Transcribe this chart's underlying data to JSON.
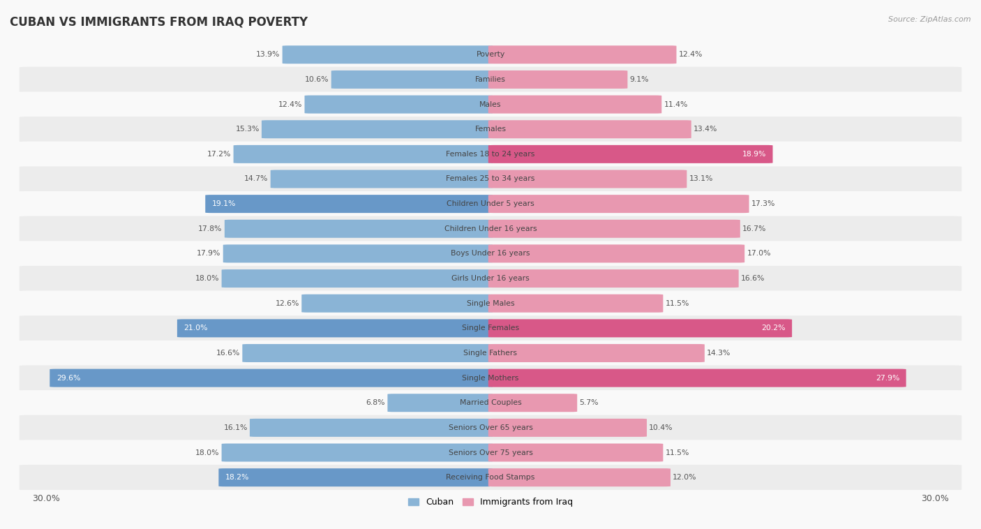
{
  "title": "CUBAN VS IMMIGRANTS FROM IRAQ POVERTY",
  "source": "Source: ZipAtlas.com",
  "categories": [
    "Poverty",
    "Families",
    "Males",
    "Females",
    "Females 18 to 24 years",
    "Females 25 to 34 years",
    "Children Under 5 years",
    "Children Under 16 years",
    "Boys Under 16 years",
    "Girls Under 16 years",
    "Single Males",
    "Single Females",
    "Single Fathers",
    "Single Mothers",
    "Married Couples",
    "Seniors Over 65 years",
    "Seniors Over 75 years",
    "Receiving Food Stamps"
  ],
  "cuban_values": [
    13.9,
    10.6,
    12.4,
    15.3,
    17.2,
    14.7,
    19.1,
    17.8,
    17.9,
    18.0,
    12.6,
    21.0,
    16.6,
    29.6,
    6.8,
    16.1,
    18.0,
    18.2
  ],
  "iraq_values": [
    12.4,
    9.1,
    11.4,
    13.4,
    18.9,
    13.1,
    17.3,
    16.7,
    17.0,
    16.6,
    11.5,
    20.2,
    14.3,
    27.9,
    5.7,
    10.4,
    11.5,
    12.0
  ],
  "cuban_color": "#8ab4d6",
  "iraq_color": "#e898b0",
  "cuban_highlight_color": "#6898c8",
  "iraq_highlight_color": "#d85888",
  "axis_max": 30.0,
  "background_color": "#f9f9f9",
  "row_odd_color": "#ececec",
  "row_even_color": "#f9f9f9",
  "legend_cuban": "Cuban",
  "legend_iraq": "Immigrants from Iraq",
  "cuban_label_inside": [
    6,
    11,
    13,
    17
  ],
  "iraq_label_inside": [
    4,
    11,
    13
  ]
}
